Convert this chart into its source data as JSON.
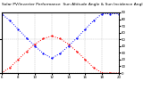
{
  "title": "Solar PV/Inverter Performance  Sun Altitude Angle & Sun Incidence Angle on PV Panels",
  "line_colors": [
    "red",
    "blue"
  ],
  "x_start": 6,
  "x_end": 20,
  "x_ticks": [
    6,
    8,
    10,
    12,
    14,
    16,
    18,
    20
  ],
  "y_min": 0,
  "y_max": 90,
  "y_ticks_right": [
    0,
    10,
    20,
    30,
    40,
    50,
    60,
    70,
    80,
    90
  ],
  "background_color": "#ffffff",
  "grid_color": "#bbbbbb",
  "title_fontsize": 3.2,
  "tick_fontsize": 2.8,
  "altitude_x": [
    6,
    7,
    8,
    9,
    10,
    11,
    12,
    13,
    14,
    15,
    16,
    17,
    18,
    19,
    20
  ],
  "altitude_y": [
    0,
    8,
    20,
    32,
    43,
    51,
    55,
    51,
    43,
    32,
    20,
    8,
    0,
    0,
    0
  ],
  "incidence_x": [
    6,
    7,
    8,
    9,
    10,
    11,
    12,
    13,
    14,
    15,
    16,
    17,
    18,
    19,
    20
  ],
  "incidence_y": [
    88,
    78,
    65,
    52,
    40,
    29,
    22,
    29,
    40,
    52,
    65,
    78,
    88,
    88,
    88
  ]
}
